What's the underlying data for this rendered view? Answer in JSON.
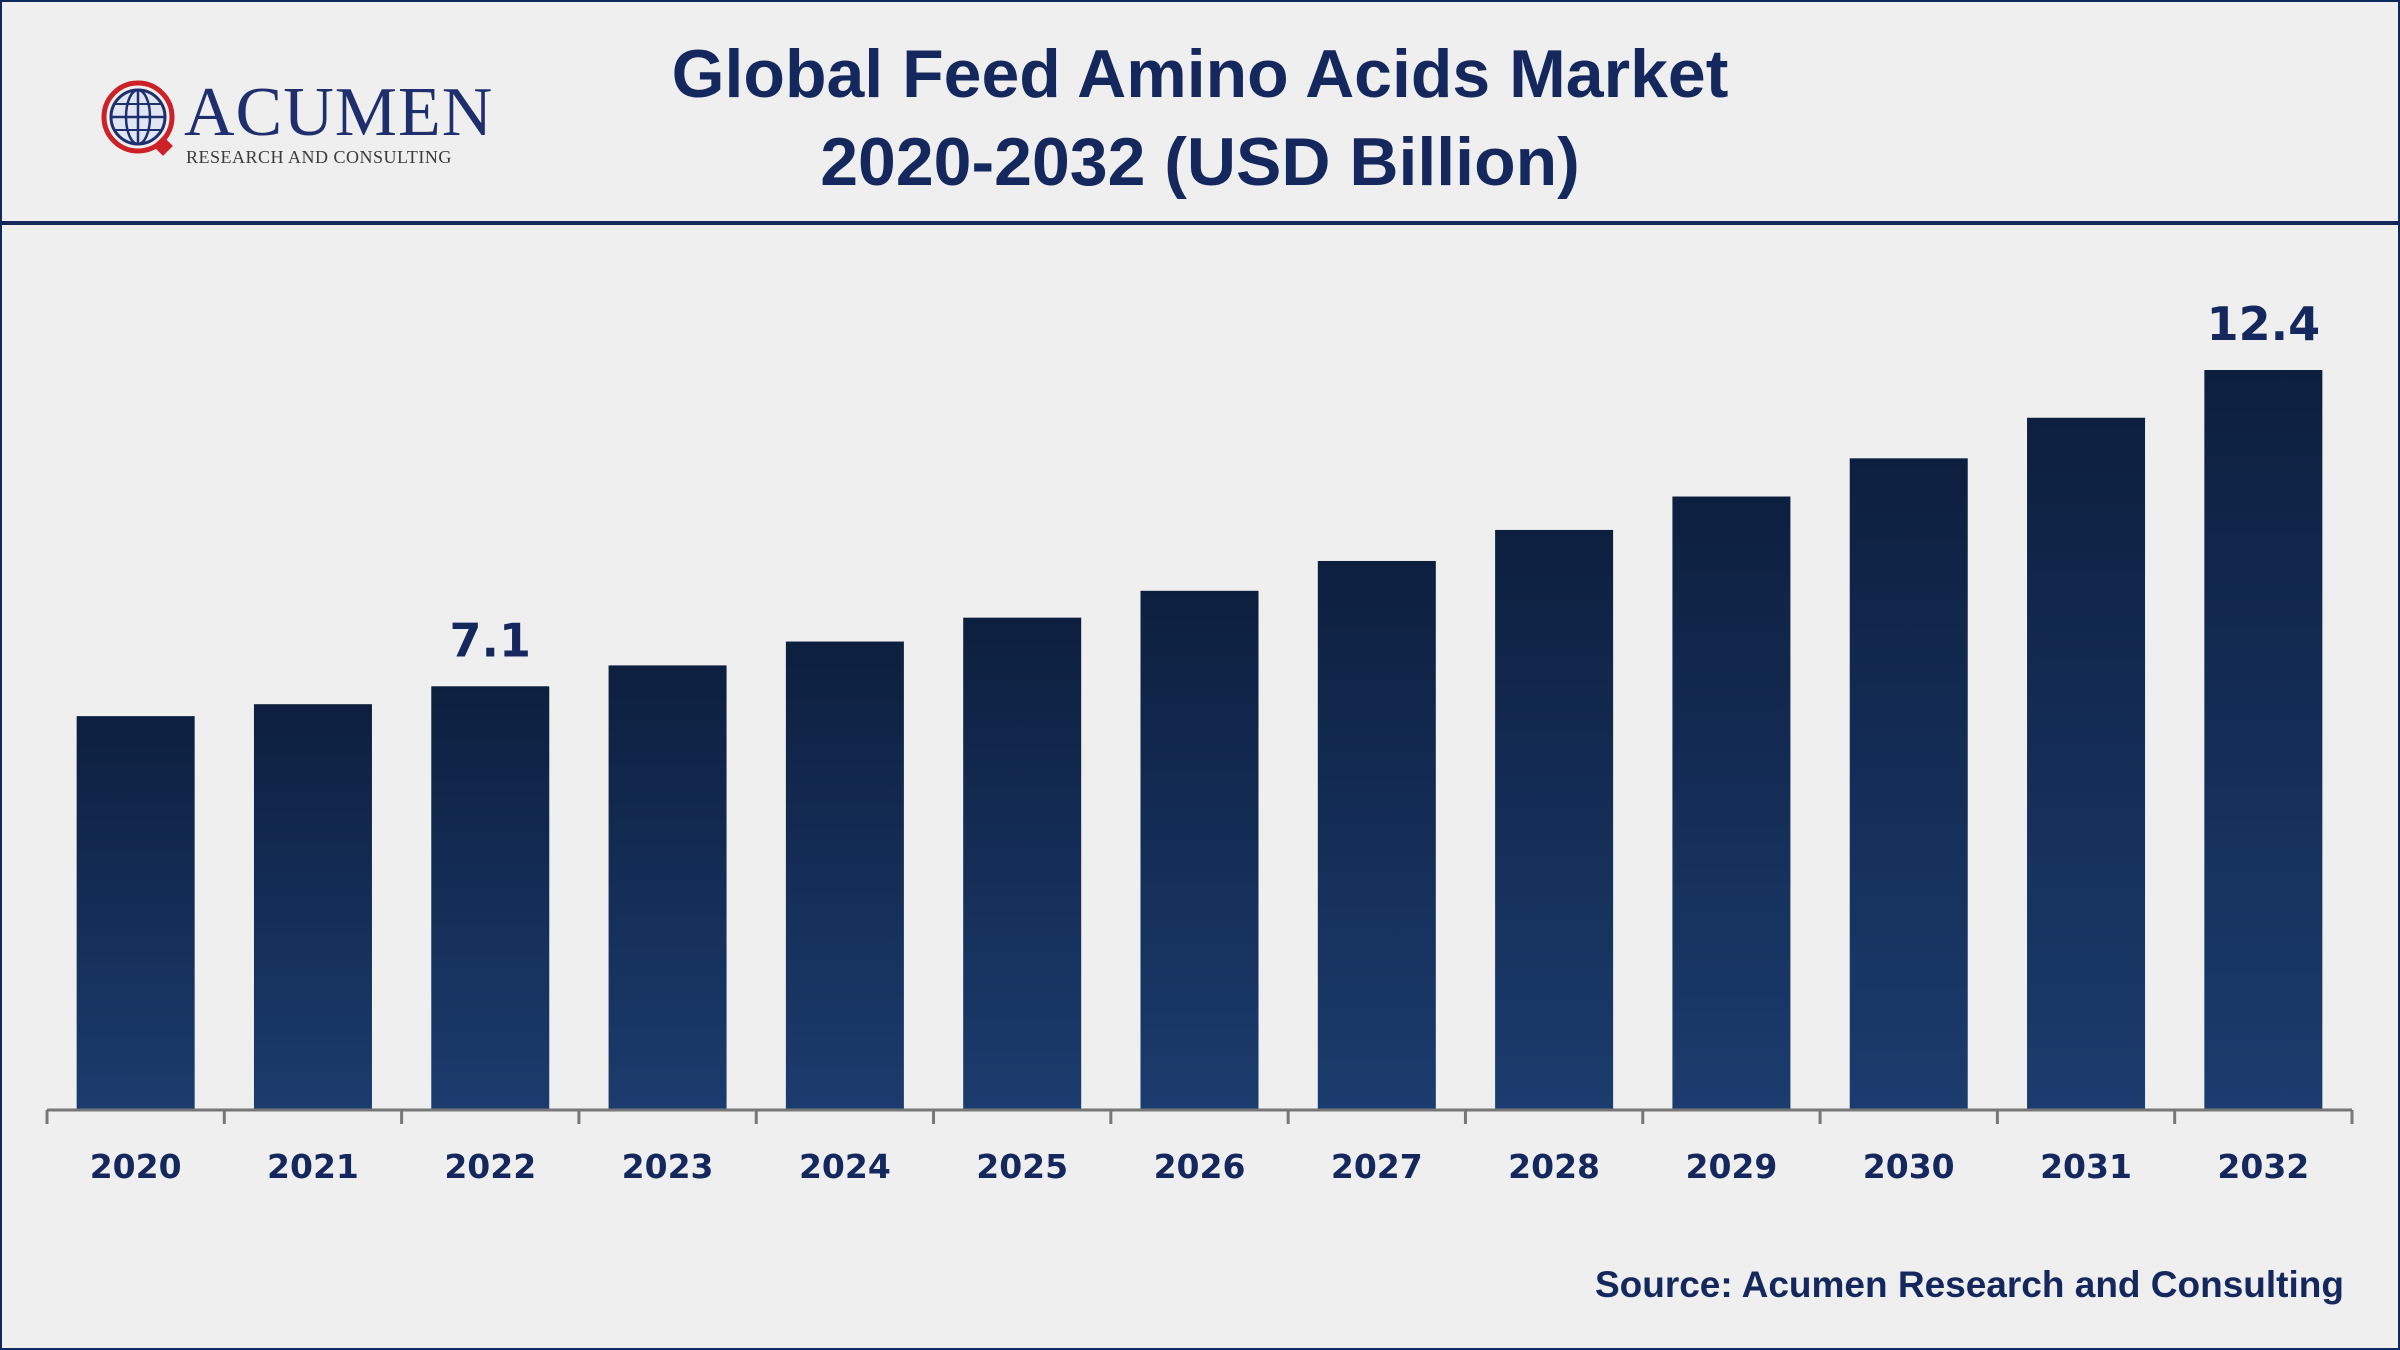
{
  "header": {
    "title_line1": "Global Feed Amino Acids Market",
    "title_line2": "2020-2032 (USD Billion)"
  },
  "logo": {
    "wordmark": "ACUMEN",
    "tagline": "RESEARCH AND CONSULTING",
    "icon": "globe-icon"
  },
  "colors": {
    "bar_top": "#0d1f3f",
    "bar_bottom": "#1b3c6e",
    "text": "#15285e",
    "axis": "#777777"
  },
  "chart_data": {
    "type": "bar",
    "title": "Global Feed Amino Acids Market 2020-2032 (USD Billion)",
    "xlabel": "",
    "ylabel": "",
    "categories": [
      "2020",
      "2021",
      "2022",
      "2023",
      "2024",
      "2025",
      "2026",
      "2027",
      "2028",
      "2029",
      "2030",
      "2031",
      "2032"
    ],
    "values": [
      6.6,
      6.8,
      7.1,
      7.45,
      7.85,
      8.25,
      8.7,
      9.2,
      9.72,
      10.28,
      10.92,
      11.6,
      12.4
    ],
    "labeled": [
      {
        "category": "2022",
        "label": "7.1"
      },
      {
        "category": "2032",
        "label": "12.4"
      }
    ],
    "ylim": [
      0,
      12.4
    ],
    "grid": false,
    "legend": "none"
  },
  "source": "Source: Acumen Research and Consulting"
}
